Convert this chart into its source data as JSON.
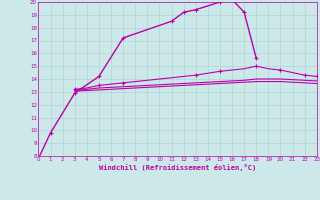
{
  "background_color": "#cce8e8",
  "grid_color": "#b0d4d4",
  "line_color": "#bb00aa",
  "xlabel": "Windchill (Refroidissement éolien,°C)",
  "xlim": [
    0,
    23
  ],
  "ylim": [
    8,
    20
  ],
  "yticks": [
    8,
    9,
    10,
    11,
    12,
    13,
    14,
    15,
    16,
    17,
    18,
    19,
    20
  ],
  "xticks": [
    0,
    1,
    2,
    3,
    4,
    5,
    6,
    7,
    8,
    9,
    10,
    11,
    12,
    13,
    14,
    15,
    16,
    17,
    18,
    19,
    20,
    21,
    22,
    23
  ],
  "s1_x": [
    0,
    1,
    3,
    5,
    7,
    11,
    12,
    13,
    15,
    16,
    17,
    18
  ],
  "s1_y": [
    7.8,
    9.8,
    12.9,
    14.2,
    17.2,
    18.5,
    19.2,
    19.4,
    20.0,
    20.2,
    19.2,
    15.6
  ],
  "s2_x": [
    3,
    4,
    5,
    6,
    7,
    8,
    9,
    10,
    11,
    12,
    13,
    14,
    15,
    16,
    17,
    18,
    19,
    20,
    21,
    22,
    23
  ],
  "s2_y": [
    13.1,
    13.2,
    13.3,
    13.35,
    13.4,
    13.45,
    13.5,
    13.55,
    13.6,
    13.65,
    13.7,
    13.75,
    13.8,
    13.85,
    13.9,
    14.0,
    14.0,
    14.0,
    13.95,
    13.9,
    13.85
  ],
  "s3_x": [
    3,
    4,
    5,
    6,
    7,
    8,
    9,
    10,
    11,
    12,
    13,
    14,
    15,
    16,
    17,
    18,
    19,
    20,
    21,
    22,
    23
  ],
  "s3_y": [
    13.2,
    13.3,
    13.5,
    13.6,
    13.7,
    13.8,
    13.9,
    14.0,
    14.1,
    14.2,
    14.3,
    14.45,
    14.6,
    14.7,
    14.8,
    15.0,
    14.8,
    14.7,
    14.5,
    14.3,
    14.2
  ],
  "s3_marker_x": [
    3,
    5,
    7,
    13,
    15,
    18,
    20,
    22,
    23
  ],
  "s3_marker_y": [
    13.2,
    13.5,
    13.7,
    14.3,
    14.6,
    15.0,
    14.7,
    14.3,
    14.2
  ],
  "s4_x": [
    3,
    4,
    5,
    6,
    7,
    8,
    9,
    10,
    11,
    12,
    13,
    14,
    15,
    16,
    17,
    18,
    19,
    20,
    21,
    22,
    23
  ],
  "s4_y": [
    13.05,
    13.1,
    13.15,
    13.2,
    13.25,
    13.3,
    13.35,
    13.4,
    13.45,
    13.5,
    13.55,
    13.6,
    13.65,
    13.7,
    13.75,
    13.8,
    13.8,
    13.8,
    13.75,
    13.7,
    13.65
  ]
}
